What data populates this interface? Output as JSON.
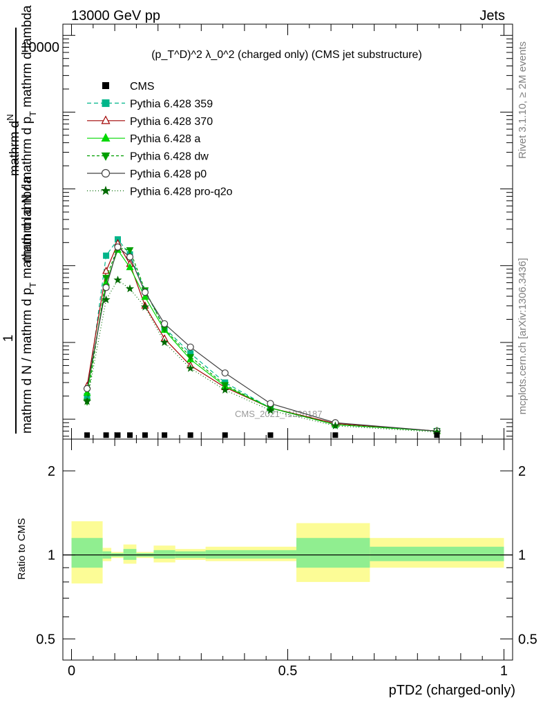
{
  "header": {
    "left": "13000 GeV pp",
    "right": "Jets"
  },
  "side": {
    "rivet": "Rivet 3.1.10, ≥ 2M events",
    "mcplots": "mcplots.cern.ch [arXiv:1306.3436]"
  },
  "colors": {
    "CMS": "#000000",
    "Pythia 6.428 359": "#00b58a",
    "Pythia 6.428 370": "#a00000",
    "Pythia 6.428 a": "#00d800",
    "Pythia 6.428 dw": "#009e00",
    "Pythia 6.428 p0": "#404040",
    "Pythia 6.428 pro-q2o": "#006a00",
    "band_inner": "#90ee90",
    "band_outer": "#fcfc96"
  },
  "chart_data": [
    {
      "type": "line",
      "title": "(p_T^D)^2 λ_0^2 (charged only) (CMS jet substructure)",
      "ylabel": "1/N dN/dλ",
      "ylabel_fragments": {
        "numerator": "mathrm d",
        "numerator_N": "N",
        "top": "mathrm d N / mathrm d p",
        "top_sub": "T",
        "top_tail": "mathrm d lambda",
        "one": "1",
        "bottom": "mathrm d N / mathrm d p",
        "bottom_sub": "T",
        "bottom_tail": "mathrm d lambda"
      },
      "yscale": "log",
      "ylim": [
        0.055,
        14000
      ],
      "ytick_label": "10000",
      "ytick_label_value": 10000,
      "xlim": [
        -0.02,
        1.02
      ],
      "watermark": "CMS_2021_I1920187",
      "legend_position": "upper-left",
      "x": [
        0.036,
        0.08,
        0.107,
        0.135,
        0.17,
        0.215,
        0.275,
        0.355,
        0.46,
        0.61,
        0.845
      ],
      "series": [
        {
          "name": "CMS",
          "marker": "square",
          "dash": "none",
          "values": [
            0.062,
            0.062,
            0.062,
            0.062,
            0.062,
            0.062,
            0.062,
            0.062,
            0.062,
            0.062,
            0.062
          ]
        },
        {
          "name": "Pythia 6.428 359",
          "marker": "square",
          "dash": "6,4",
          "values": [
            0.2,
            13.5,
            22.0,
            14.0,
            4.7,
            1.55,
            0.72,
            0.3,
            0.14,
            0.085,
            0.07
          ]
        },
        {
          "name": "Pythia 6.428 370",
          "marker": "triangle-up-open",
          "dash": "none",
          "values": [
            0.27,
            8.5,
            19.5,
            10.5,
            3.0,
            1.12,
            0.5,
            0.26,
            0.14,
            0.088,
            0.07
          ]
        },
        {
          "name": "Pythia 6.428 a",
          "marker": "triangle-up",
          "dash": "none",
          "values": [
            0.22,
            6.0,
            16.0,
            9.5,
            3.9,
            1.45,
            0.6,
            0.27,
            0.14,
            0.085,
            0.07
          ]
        },
        {
          "name": "Pythia 6.428 dw",
          "marker": "triangle-down",
          "dash": "4,3",
          "values": [
            0.17,
            7.0,
            17.0,
            16.0,
            4.8,
            1.5,
            0.65,
            0.28,
            0.14,
            0.085,
            0.07
          ]
        },
        {
          "name": "Pythia 6.428 p0",
          "marker": "circle-open",
          "dash": "none",
          "values": [
            0.25,
            5.2,
            17.5,
            13.0,
            4.5,
            1.75,
            0.87,
            0.4,
            0.16,
            0.09,
            0.07
          ]
        },
        {
          "name": "Pythia 6.428 pro-q2o",
          "marker": "star",
          "dash": "1,3",
          "values": [
            0.17,
            3.6,
            6.5,
            5.0,
            2.9,
            1.0,
            0.46,
            0.24,
            0.13,
            0.082,
            0.068
          ]
        }
      ]
    },
    {
      "type": "area",
      "ylabel": "Ratio to CMS",
      "xlabel": "pTD2 (charged-only)",
      "yscale": "log",
      "ylim": [
        0.42,
        2.6
      ],
      "xlim": [
        -0.02,
        1.02
      ],
      "yticks": [
        0.5,
        1,
        2
      ],
      "ytick_labels": [
        "0.5",
        "1",
        "2"
      ],
      "xticks": [
        0,
        0.5,
        1
      ],
      "xtick_labels": [
        "0",
        "0.5",
        "1"
      ],
      "bins": [
        {
          "x": [
            0.0,
            0.072
          ],
          "inner": [
            0.9,
            1.15
          ],
          "outer": [
            0.79,
            1.32
          ]
        },
        {
          "x": [
            0.072,
            0.092
          ],
          "inner": [
            0.97,
            1.03
          ],
          "outer": [
            0.95,
            1.06
          ]
        },
        {
          "x": [
            0.092,
            0.12
          ],
          "inner": [
            0.985,
            1.015
          ],
          "outer": [
            0.975,
            1.025
          ]
        },
        {
          "x": [
            0.12,
            0.15
          ],
          "inner": [
            0.96,
            1.05
          ],
          "outer": [
            0.93,
            1.09
          ]
        },
        {
          "x": [
            0.15,
            0.19
          ],
          "inner": [
            0.985,
            1.015
          ],
          "outer": [
            0.975,
            1.025
          ]
        },
        {
          "x": [
            0.19,
            0.24
          ],
          "inner": [
            0.97,
            1.04
          ],
          "outer": [
            0.94,
            1.08
          ]
        },
        {
          "x": [
            0.24,
            0.31
          ],
          "inner": [
            0.975,
            1.03
          ],
          "outer": [
            0.96,
            1.05
          ]
        },
        {
          "x": [
            0.31,
            0.52
          ],
          "inner": [
            0.97,
            1.04
          ],
          "outer": [
            0.95,
            1.07
          ]
        },
        {
          "x": [
            0.52,
            0.69
          ],
          "inner": [
            0.9,
            1.15
          ],
          "outer": [
            0.8,
            1.3
          ]
        },
        {
          "x": [
            0.69,
            1.0
          ],
          "inner": [
            0.95,
            1.07
          ],
          "outer": [
            0.9,
            1.15
          ]
        }
      ]
    }
  ]
}
